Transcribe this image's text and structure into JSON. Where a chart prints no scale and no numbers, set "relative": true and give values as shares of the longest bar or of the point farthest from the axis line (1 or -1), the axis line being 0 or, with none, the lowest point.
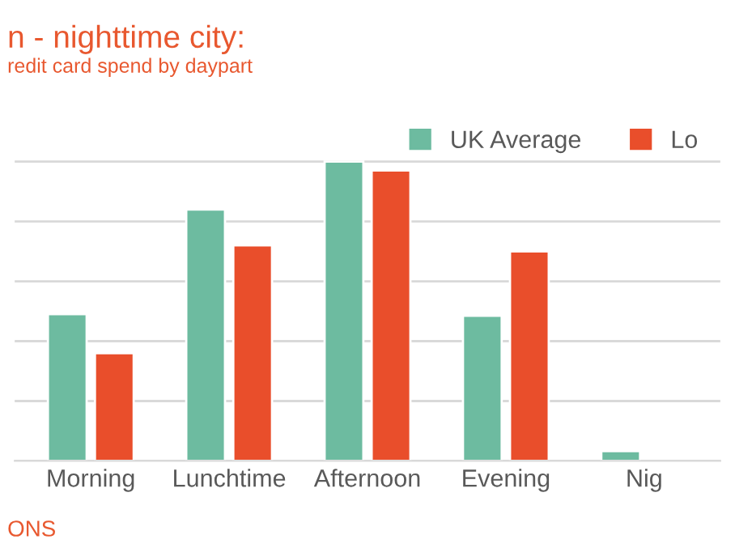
{
  "chart_data": {
    "type": "bar",
    "title": "n - nighttime city:",
    "subtitle": "redit card spend by daypart",
    "categories": [
      "Morning",
      "Lunchtime",
      "Afternoon",
      "Evening",
      "Nig"
    ],
    "relative": true,
    "series": [
      {
        "name": "UK Average",
        "color": "#6dbba0",
        "values": [
          0.49,
          0.84,
          1,
          0.485,
          0.033
        ]
      },
      {
        "name": "Lo",
        "color": "#e94e2b",
        "values": [
          0.36,
          0.72,
          0.97,
          0.7,
          null
        ]
      }
    ],
    "annotations": [
      "ONS"
    ],
    "grid": "y",
    "legend": "top right"
  }
}
